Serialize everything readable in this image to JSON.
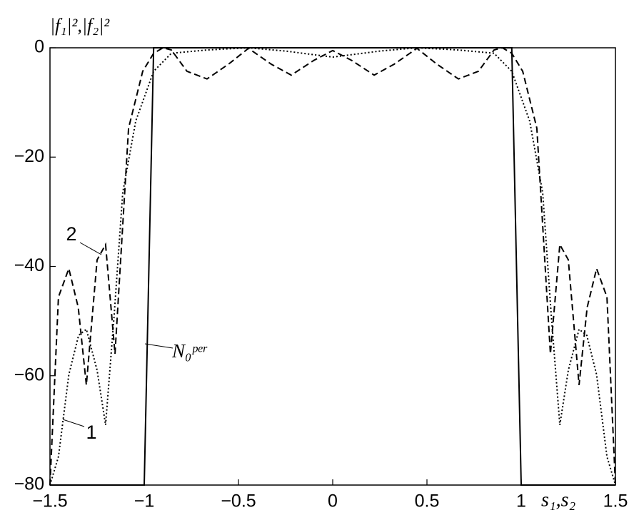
{
  "chart_data": {
    "type": "line",
    "y_label": "|f₁|²,|f₂|²",
    "x_label": "s₁,s₂",
    "xlim": [
      -1.5,
      1.5
    ],
    "ylim": [
      -80,
      0
    ],
    "xticks": [
      {
        "value": -1.5,
        "label": "−1.5"
      },
      {
        "value": -1,
        "label": "−1"
      },
      {
        "value": -0.5,
        "label": "−0.5"
      },
      0,
      0.5,
      1,
      1.5
    ],
    "yticks": [
      0,
      {
        "value": -20,
        "label": "−20"
      },
      {
        "value": -40,
        "label": "−40"
      },
      {
        "value": -60,
        "label": "−60"
      },
      {
        "value": -80,
        "label": "−80"
      }
    ],
    "series": [
      {
        "name": "N₀ᵖᵉʳ",
        "color": "#000000",
        "style": "solid",
        "x": [
          -1.5,
          -1.0,
          -0.95,
          0.95,
          1.0,
          1.5
        ],
        "values": [
          -80,
          -80,
          0,
          0,
          -80,
          -80
        ]
      },
      {
        "name": "2",
        "color": "#000000",
        "style": "dashed",
        "x": [
          -1.5,
          -1.455,
          -1.4,
          -1.35,
          -1.307,
          -1.25,
          -1.205,
          -1.155,
          -1.083,
          -1.008,
          -0.95,
          -0.9,
          -0.856,
          -0.773,
          -0.667,
          -0.553,
          -0.447,
          -0.326,
          -0.22,
          -0.1,
          0,
          0.1,
          0.22,
          0.326,
          0.447,
          0.553,
          0.667,
          0.773,
          0.856,
          0.9,
          0.95,
          1.008,
          1.083,
          1.155,
          1.205,
          1.25,
          1.307,
          1.35,
          1.4,
          1.455,
          1.5
        ],
        "values": [
          -80,
          -45.6,
          -40.4,
          -47.5,
          -61.7,
          -38.8,
          -36,
          -56,
          -14.7,
          -4.3,
          -1,
          0,
          -0.4,
          -4.3,
          -5.7,
          -3,
          -0.1,
          -3,
          -5,
          -2.3,
          -0.5,
          -2.3,
          -5,
          -3,
          -0.1,
          -3,
          -5.7,
          -4.3,
          -0.4,
          0,
          -1,
          -4.3,
          -14.7,
          -56,
          -36,
          -38.8,
          -61.7,
          -47.5,
          -40.4,
          -45.6,
          -80
        ]
      },
      {
        "name": "1",
        "color": "#000000",
        "style": "dotted",
        "x": [
          -1.5,
          -1.455,
          -1.4,
          -1.348,
          -1.307,
          -1.25,
          -1.205,
          -1.159,
          -1.114,
          -1.045,
          -0.95,
          -0.856,
          -0.667,
          -0.447,
          -0.25,
          0,
          0.25,
          0.447,
          0.667,
          0.856,
          0.95,
          1.045,
          1.114,
          1.159,
          1.205,
          1.25,
          1.307,
          1.348,
          1.4,
          1.455,
          1.5
        ],
        "values": [
          -80,
          -74.8,
          -59.8,
          -52.6,
          -51.5,
          -59,
          -69,
          -48.7,
          -26.5,
          -13.4,
          -4.3,
          -1,
          -0.4,
          0,
          -0.6,
          -1.7,
          -0.6,
          0,
          -0.4,
          -1,
          -4.3,
          -13.4,
          -26.5,
          -48.7,
          -69,
          -59,
          -51.5,
          -52.6,
          -59.8,
          -74.8,
          -80
        ]
      }
    ]
  }
}
